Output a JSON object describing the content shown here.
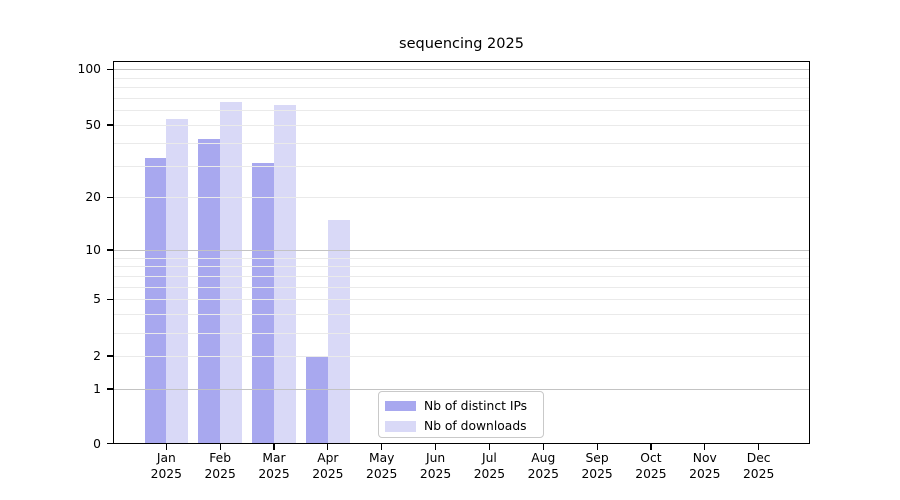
{
  "chart_data": {
    "type": "bar",
    "title": "sequencing 2025",
    "categories": [
      "Jan",
      "Feb",
      "Mar",
      "Apr",
      "May",
      "Jun",
      "Jul",
      "Aug",
      "Sep",
      "Oct",
      "Nov",
      "Dec"
    ],
    "x_year_label": "2025",
    "series": [
      {
        "name": "Nb of distinct IPs",
        "color": "#a8a8ef",
        "values": [
          33,
          42,
          31,
          2,
          0,
          0,
          0,
          0,
          0,
          0,
          0,
          0
        ]
      },
      {
        "name": "Nb of downloads",
        "color": "#d9d9f7",
        "values": [
          54,
          67,
          64,
          15,
          0,
          0,
          0,
          0,
          0,
          0,
          0,
          0
        ]
      }
    ],
    "yscale": "log1p",
    "yticks": [
      0,
      1,
      2,
      5,
      10,
      20,
      50,
      100
    ],
    "ylim": [
      0,
      112
    ],
    "grid": true,
    "legend_position": "bottom-center",
    "colors": {
      "grid_major": "#c3c3c3",
      "grid_minor": "#eaeaea",
      "axis": "#000000",
      "background": "#ffffff"
    }
  }
}
